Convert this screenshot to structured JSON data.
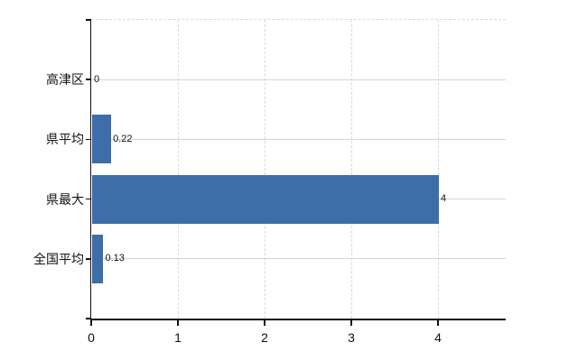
{
  "chart_data": {
    "type": "bar",
    "orientation": "horizontal",
    "title": "",
    "categories": [
      "高津区",
      "県平均",
      "県最大",
      "全国平均"
    ],
    "values": [
      0,
      0.22,
      4,
      0.13
    ],
    "value_labels": [
      "0",
      "0.22",
      "4",
      "0.13"
    ],
    "x_tick_labels": [
      "0",
      "1",
      "2",
      "3",
      "4"
    ],
    "x_tick_values": [
      0,
      1,
      2,
      3,
      4
    ],
    "xlim": [
      0,
      4.78
    ],
    "xlabel": "",
    "ylabel": "",
    "grid": true,
    "legend": "none",
    "colors": {
      "bar": "#3d6ea9",
      "grid_horizontal": "#d0d7d0",
      "grid_vertical": "#d9d9d9",
      "axis": "#111111",
      "text": "#111111",
      "background": "#ffffff"
    }
  }
}
